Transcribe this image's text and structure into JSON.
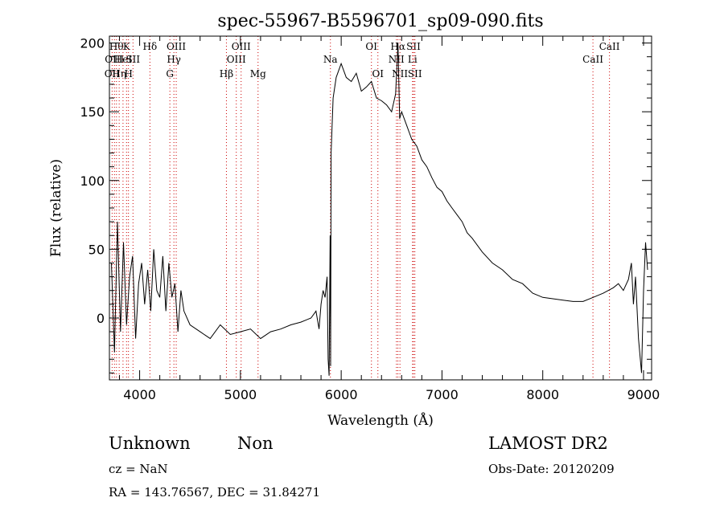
{
  "chart_data": {
    "type": "line",
    "title": "spec-55967-B5596701_sp09-090.fits",
    "xlabel": "Wavelength (Å)",
    "ylabel": "Flux (relative)",
    "xlim": [
      3700,
      9080
    ],
    "ylim": [
      -45,
      205
    ],
    "xticks": [
      4000,
      5000,
      6000,
      7000,
      8000,
      9000
    ],
    "yticks": [
      0,
      50,
      100,
      150,
      200
    ],
    "grid": false,
    "legend": "none",
    "line_color": "#000000",
    "marker_color": "#cc0000",
    "series": [
      {
        "x": [
          3720,
          3750,
          3780,
          3810,
          3840,
          3870,
          3900,
          3930,
          3960,
          3990,
          4020,
          4050,
          4080,
          4110,
          4140,
          4170,
          4200,
          4230,
          4260,
          4290,
          4320,
          4350,
          4380,
          4410,
          4440,
          4500,
          4600,
          4700,
          4800,
          4900,
          5000,
          5100,
          5200,
          5300,
          5400,
          5500,
          5600,
          5700,
          5750,
          5780,
          5800,
          5820,
          5840,
          5860,
          5870,
          5880,
          5890,
          5895,
          5900,
          5920,
          5950,
          6000,
          6050,
          6100,
          6150,
          6200,
          6250,
          6300,
          6350,
          6400,
          6450,
          6500,
          6540,
          6563,
          6580,
          6600,
          6650,
          6700,
          6750,
          6800,
          6850,
          6900,
          6950,
          7000,
          7050,
          7100,
          7150,
          7200,
          7250,
          7300,
          7400,
          7500,
          7600,
          7700,
          7800,
          7900,
          8000,
          8100,
          8200,
          8300,
          8400,
          8500,
          8600,
          8700,
          8750,
          8800,
          8850,
          8880,
          8900,
          8920,
          8950,
          8980,
          9000,
          9020,
          9040
        ],
        "y": [
          40,
          -25,
          70,
          -10,
          55,
          -5,
          30,
          45,
          -15,
          25,
          40,
          10,
          35,
          5,
          50,
          20,
          15,
          45,
          5,
          40,
          15,
          25,
          -10,
          20,
          5,
          -5,
          -10,
          -15,
          -5,
          -12,
          -10,
          -8,
          -15,
          -10,
          -8,
          -5,
          -3,
          0,
          5,
          -8,
          10,
          20,
          15,
          30,
          -30,
          -42,
          60,
          -35,
          120,
          160,
          175,
          185,
          175,
          172,
          178,
          165,
          168,
          172,
          160,
          158,
          155,
          150,
          163,
          200,
          145,
          150,
          140,
          130,
          125,
          115,
          110,
          102,
          95,
          92,
          85,
          80,
          75,
          70,
          62,
          58,
          48,
          40,
          35,
          28,
          25,
          18,
          15,
          14,
          13,
          12,
          12,
          15,
          18,
          22,
          25,
          20,
          28,
          40,
          10,
          30,
          -15,
          -40,
          20,
          55,
          35
        ]
      }
    ],
    "lines": [
      {
        "x": 3727,
        "label": "OII",
        "row": 2
      },
      {
        "x": 3750,
        "label": "OIII",
        "row": 1
      },
      {
        "x": 3770,
        "label": "Hθ",
        "row": 0
      },
      {
        "x": 3797,
        "label": "Hη",
        "row": 2
      },
      {
        "x": 3835,
        "label": "HeI",
        "row": 1
      },
      {
        "x": 3870,
        "label": "K",
        "row": 0
      },
      {
        "x": 3889,
        "label": "H",
        "row": 2
      },
      {
        "x": 3934,
        "label": "SII",
        "row": 1
      },
      {
        "x": 4102,
        "label": "Hδ",
        "row": 0
      },
      {
        "x": 4300,
        "label": "G",
        "row": 2
      },
      {
        "x": 4340,
        "label": "Hγ",
        "row": 1
      },
      {
        "x": 4363,
        "label": "OIII",
        "row": 0
      },
      {
        "x": 4861,
        "label": "Hβ",
        "row": 2
      },
      {
        "x": 4959,
        "label": "OIII",
        "row": 1
      },
      {
        "x": 5007,
        "label": "OIII",
        "row": 0
      },
      {
        "x": 5175,
        "label": "Mg",
        "row": 2
      },
      {
        "x": 5893,
        "label": "Na",
        "row": 1
      },
      {
        "x": 6300,
        "label": "OI",
        "row": 0
      },
      {
        "x": 6364,
        "label": "OI",
        "row": 2
      },
      {
        "x": 6548,
        "label": "NII",
        "row": 1
      },
      {
        "x": 6563,
        "label": "Hα",
        "row": 0
      },
      {
        "x": 6583,
        "label": "NII",
        "row": 2
      },
      {
        "x": 6708,
        "label": "Li",
        "row": 1
      },
      {
        "x": 6717,
        "label": "SII",
        "row": 0
      },
      {
        "x": 6731,
        "label": "SII",
        "row": 2
      },
      {
        "x": 8498,
        "label": "CaII",
        "row": 1
      },
      {
        "x": 8662,
        "label": "CaII",
        "row": 0
      }
    ]
  },
  "info": {
    "class": "Unknown",
    "subclass": "Non",
    "survey": "LAMOST DR2",
    "cz": "cz = NaN",
    "obs_date": "Obs-Date: 20120209",
    "coords": "RA = 143.76567, DEC =  31.84271"
  }
}
